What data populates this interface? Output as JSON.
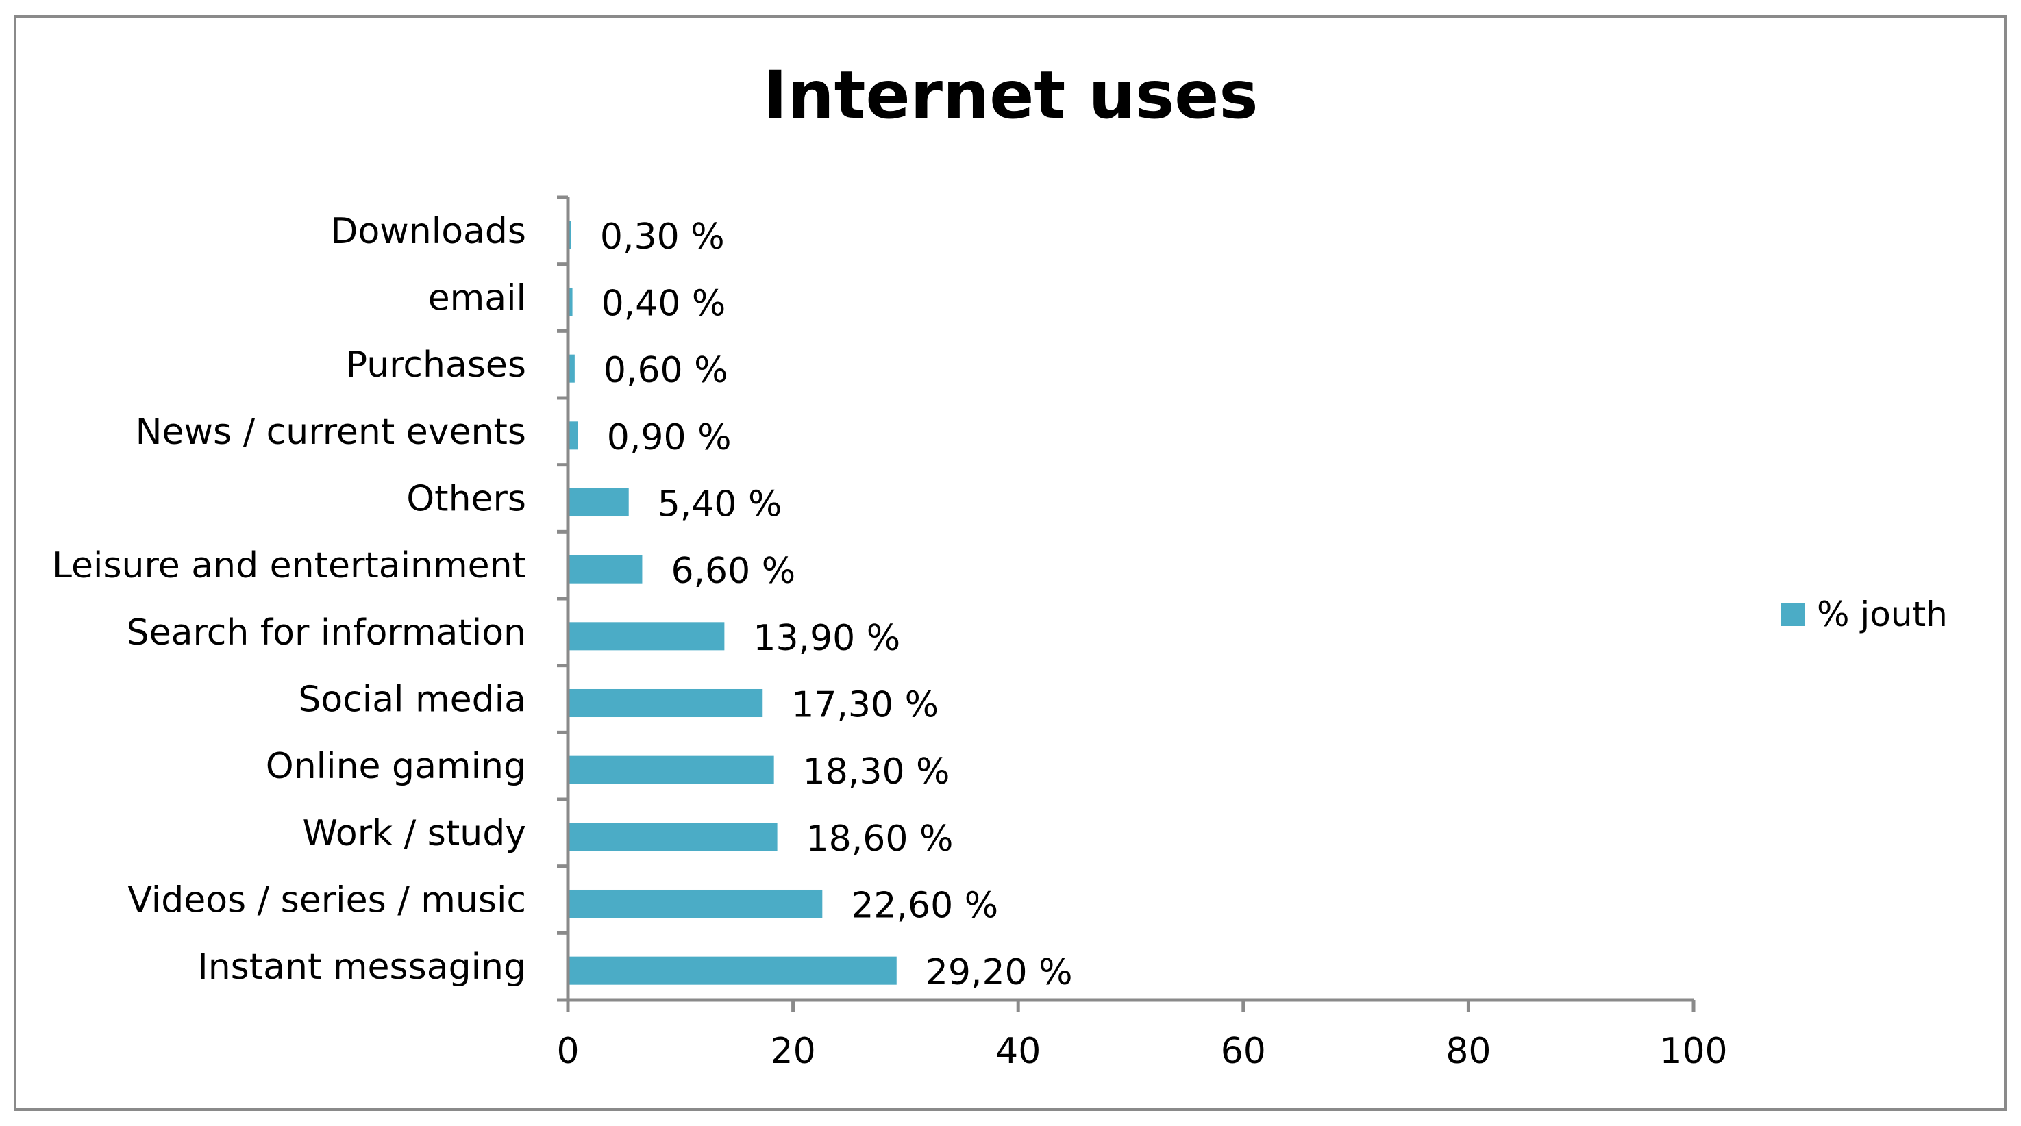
{
  "chart_data": {
    "type": "bar",
    "orientation": "horizontal",
    "title": "Internet uses",
    "categories": [
      "Downloads",
      "email",
      "Purchases",
      "News / current events",
      "Others",
      "Leisure and entertainment",
      "Search for information",
      "Social media",
      "Online gaming",
      "Work / study",
      "Videos / series / music",
      "Instant messaging"
    ],
    "series": [
      {
        "name": "% jouth",
        "color": "#4bacc6",
        "values": [
          0.3,
          0.4,
          0.6,
          0.9,
          5.4,
          6.6,
          13.9,
          17.3,
          18.3,
          18.6,
          22.6,
          29.2
        ],
        "labels": [
          "0,30 %",
          "0,40 %",
          "0,60 %",
          "0,90 %",
          "5,40 %",
          "6,60 %",
          "13,90 %",
          "17,30 %",
          "18,30 %",
          "18,60 %",
          "22,60 %",
          "29,20 %"
        ]
      }
    ],
    "xlim": [
      0,
      100
    ],
    "xticks": [
      "0",
      "20",
      "40",
      "60",
      "80",
      "100"
    ],
    "xlabel": "",
    "ylabel": "",
    "grid": false,
    "legend_position": "right",
    "axis_color": "#8a8a8a"
  }
}
